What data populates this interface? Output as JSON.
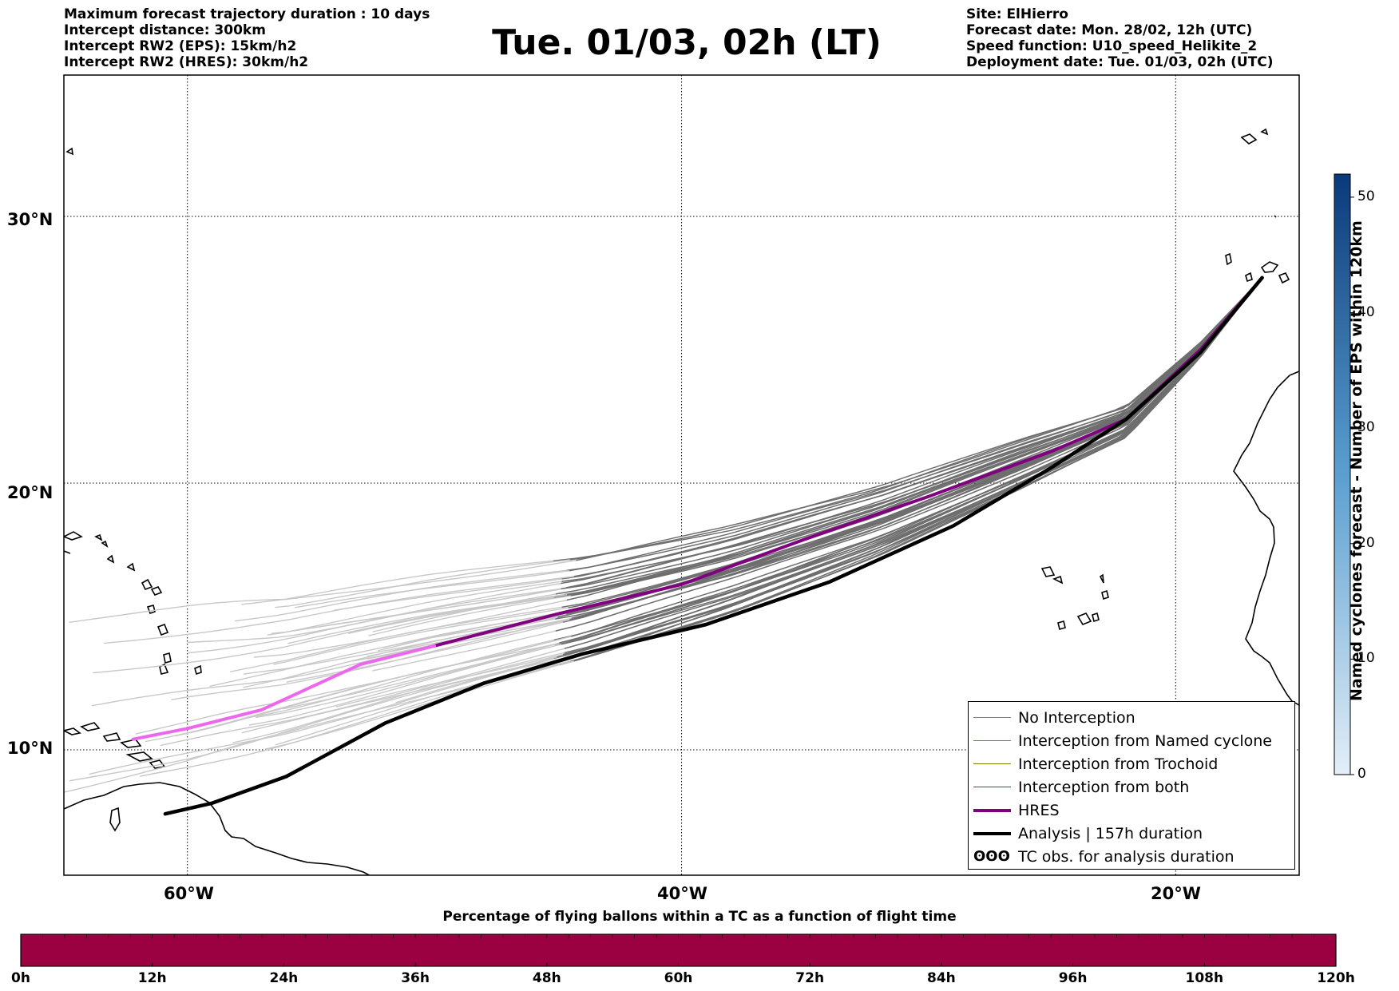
{
  "header": {
    "left": [
      "Maximum forecast trajectory duration : 10 days",
      "Intercept distance: 300km",
      "Intercept RW2 (EPS):  15km/h2",
      "Intercept RW2 (HRES): 30km/h2"
    ],
    "title": "Tue. 01/03, 02h (LT)",
    "right": [
      "Site: ElHierro",
      "Forecast date: Mon. 28/02, 12h (UTC)",
      "Speed function: U10_speed_Helikite_2",
      "Deployment date: Tue. 01/03, 02h (UTC)"
    ]
  },
  "map": {
    "lat_labels": [
      "30°N",
      "20°N",
      "10°N"
    ],
    "lon_labels": [
      "60°W",
      "40°W",
      "20°W"
    ],
    "extent": {
      "lon_min": -65,
      "lon_max": -15,
      "lat_min": 5.3,
      "lat_max": 35.3
    }
  },
  "legend": {
    "items": [
      {
        "label": "No Interception",
        "color": "#808080",
        "width": 1.5,
        "kind": "line"
      },
      {
        "label": "Interception from Named cyclone",
        "color": "#ff4500",
        "width": 1.5,
        "kind": "line"
      },
      {
        "label": "Interception from Trochoid",
        "color": "#808000",
        "width": 1.5,
        "kind": "line"
      },
      {
        "label": "Interception from both",
        "color": "#008000",
        "width": 1.5,
        "kind": "line"
      },
      {
        "label": "HRES",
        "color": "#800080",
        "width": 4,
        "kind": "line"
      },
      {
        "label": "Analysis | 157h duration",
        "color": "#000000",
        "width": 4.5,
        "kind": "line"
      },
      {
        "label": "TC obs. for analysis duration",
        "color": "#000000",
        "kind": "symbol",
        "symbol": "ʘʘʘ"
      }
    ]
  },
  "colorbar_right": {
    "label": "Named cyclones forecast - Number of EPS within 120km",
    "ticks": [
      "0",
      "10",
      "20",
      "30",
      "40",
      "50"
    ],
    "min": 0,
    "max": 52,
    "color_low": "#e3eef8",
    "color_high": "#0a3a7a"
  },
  "colorbar_bottom": {
    "label": "Percentage of flying ballons within a TC as a function of flight time",
    "ticks": [
      "0h",
      "12h",
      "24h",
      "36h",
      "48h",
      "60h",
      "72h",
      "84h",
      "96h",
      "108h",
      "120h"
    ],
    "fill_color": "#9b0041",
    "fill_fraction": 1.0
  },
  "colors": {
    "ens_early": "#c8c8c8",
    "ens_late": "#6e6e6e",
    "hres_early": "#ee66ee",
    "hres_late": "#800080",
    "analysis": "#000000"
  }
}
